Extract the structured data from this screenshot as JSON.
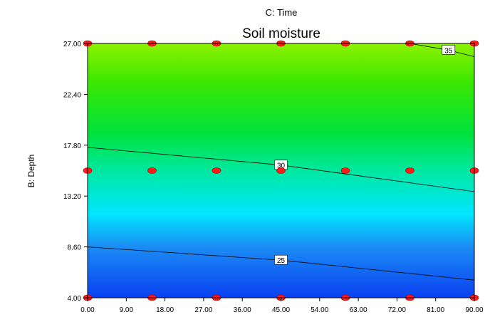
{
  "chart_data": {
    "type": "contour",
    "top_label": "C: Time",
    "title": "Soil moisture",
    "xlabel": "",
    "ylabel": "B: Depth",
    "xlim": [
      0,
      90
    ],
    "ylim": [
      4,
      27
    ],
    "x_ticks": [
      "0.00",
      "9.00",
      "18.00",
      "27.00",
      "36.00",
      "45.00",
      "54.00",
      "63.00",
      "72.00",
      "81.00",
      "90.00"
    ],
    "y_ticks": [
      "4.00",
      "8.60",
      "13.20",
      "17.80",
      "22.40",
      "27.00"
    ],
    "contours": [
      {
        "level": "25",
        "points": [
          [
            0,
            8.6
          ],
          [
            45,
            7.4
          ],
          [
            90,
            5.6
          ]
        ],
        "label_x": 45
      },
      {
        "level": "30",
        "points": [
          [
            0,
            17.6
          ],
          [
            45,
            16.0
          ],
          [
            90,
            13.6
          ]
        ],
        "label_x": 45
      },
      {
        "level": "35",
        "points": [
          [
            75,
            27.0
          ],
          [
            84,
            26.4
          ],
          [
            90,
            25.8
          ]
        ],
        "label_x": 84
      }
    ],
    "design_points": [
      [
        0,
        4
      ],
      [
        15,
        4
      ],
      [
        30,
        4
      ],
      [
        45,
        4
      ],
      [
        60,
        4
      ],
      [
        75,
        4
      ],
      [
        90,
        4
      ],
      [
        0,
        15.5
      ],
      [
        15,
        15.5
      ],
      [
        30,
        15.5
      ],
      [
        45,
        15.5
      ],
      [
        60,
        15.5
      ],
      [
        75,
        15.5
      ],
      [
        90,
        15.5
      ],
      [
        0,
        27
      ],
      [
        15,
        27
      ],
      [
        30,
        27
      ],
      [
        45,
        27
      ],
      [
        60,
        27
      ],
      [
        75,
        27
      ],
      [
        90,
        27
      ]
    ],
    "color_scale": [
      "#0033ff",
      "#00d8ff",
      "#00ee66",
      "#7cf000"
    ],
    "grid": false,
    "legend": "none"
  }
}
